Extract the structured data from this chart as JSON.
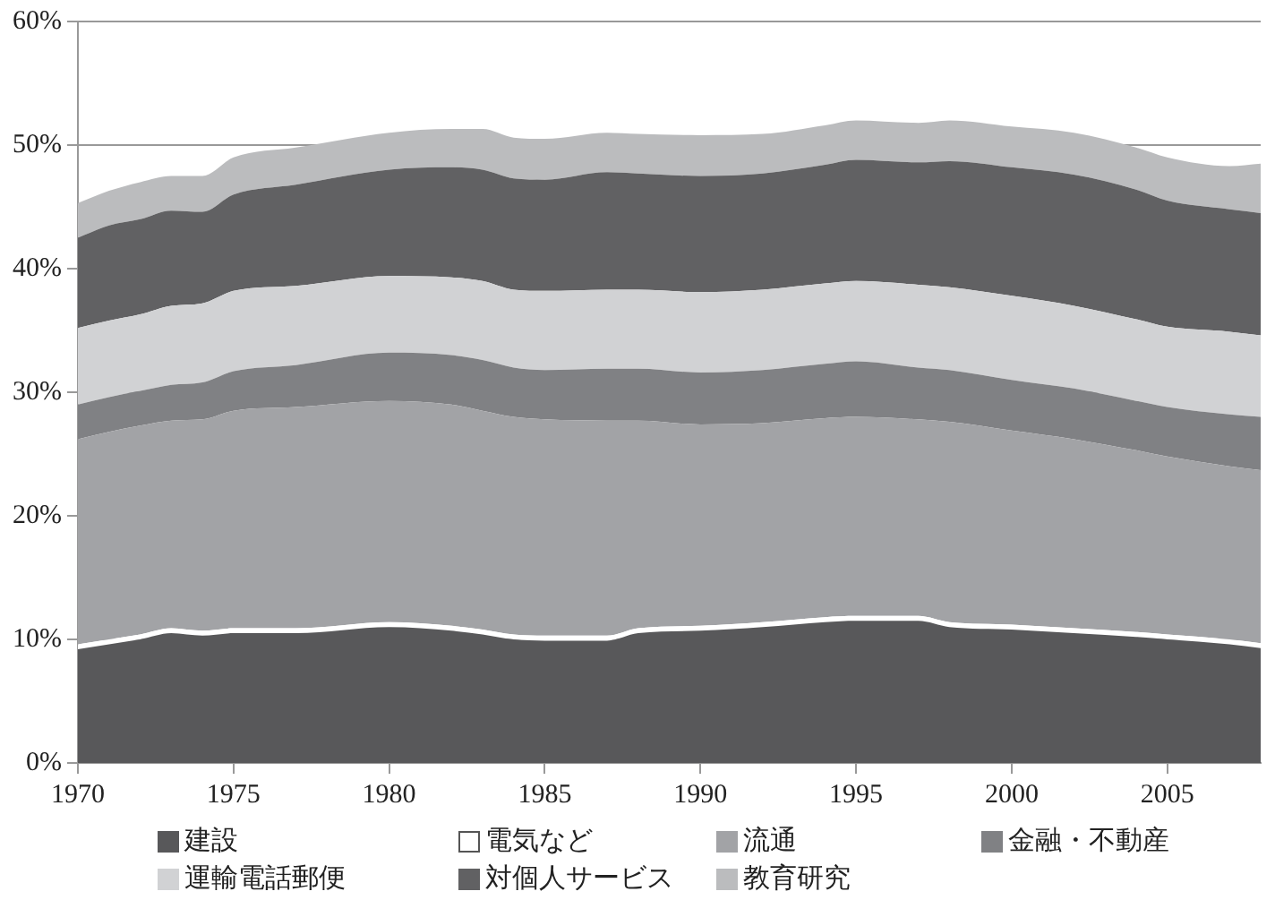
{
  "chart_data": {
    "type": "area",
    "stacked": true,
    "grid": "y",
    "legend": "bottom",
    "x": [
      1970,
      1971,
      1972,
      1973,
      1974,
      1975,
      1977,
      1980,
      1982,
      1983,
      1984,
      1985,
      1987,
      1988,
      1990,
      1992,
      1994,
      1995,
      1997,
      1998,
      2000,
      2002,
      2004,
      2005,
      2007,
      2008
    ],
    "xlim": [
      1970,
      2008
    ],
    "xticks": [
      1970,
      1975,
      1980,
      1985,
      1990,
      1995,
      2000,
      2005
    ],
    "ylim": [
      0,
      60
    ],
    "yticks": [
      {
        "value": 0,
        "label": "0%"
      },
      {
        "value": 10,
        "label": "10%"
      },
      {
        "value": 20,
        "label": "20%"
      },
      {
        "value": 30,
        "label": "30%"
      },
      {
        "value": 40,
        "label": "40%"
      },
      {
        "value": 50,
        "label": "50%"
      },
      {
        "value": 60,
        "label": "60%"
      }
    ],
    "series": [
      {
        "name": "建設",
        "color": "#58585a",
        "values": [
          9.2,
          9.6,
          10.0,
          10.5,
          10.3,
          10.5,
          10.5,
          11.0,
          10.7,
          10.4,
          10.0,
          9.9,
          9.9,
          10.5,
          10.7,
          11.0,
          11.4,
          11.5,
          11.5,
          11.0,
          10.8,
          10.5,
          10.2,
          10.0,
          9.6,
          9.3
        ]
      },
      {
        "name": "電気など",
        "color": "#ffffff",
        "values": [
          0.4,
          0.4,
          0.4,
          0.4,
          0.4,
          0.4,
          0.4,
          0.4,
          0.4,
          0.4,
          0.4,
          0.4,
          0.4,
          0.4,
          0.4,
          0.4,
          0.4,
          0.4,
          0.4,
          0.4,
          0.4,
          0.4,
          0.4,
          0.4,
          0.4,
          0.4
        ]
      },
      {
        "name": "流通",
        "color": "#a2a3a6",
        "values": [
          16.6,
          16.8,
          16.9,
          16.8,
          17.1,
          17.6,
          17.9,
          17.9,
          17.9,
          17.7,
          17.6,
          17.5,
          17.4,
          16.8,
          16.3,
          16.1,
          16.1,
          16.1,
          15.9,
          16.2,
          15.7,
          15.3,
          14.7,
          14.4,
          14.0,
          14.0
        ]
      },
      {
        "name": "金融・不動産",
        "color": "#808184",
        "values": [
          2.8,
          2.8,
          2.8,
          2.9,
          3.0,
          3.2,
          3.4,
          3.9,
          4.0,
          4.1,
          4.0,
          4.0,
          4.2,
          4.2,
          4.2,
          4.3,
          4.4,
          4.5,
          4.2,
          4.2,
          4.1,
          4.1,
          4.0,
          4.0,
          4.2,
          4.3
        ]
      },
      {
        "name": "運輸電話郵便",
        "color": "#d1d2d4",
        "values": [
          6.2,
          6.2,
          6.2,
          6.4,
          6.4,
          6.5,
          6.4,
          6.2,
          6.3,
          6.4,
          6.3,
          6.4,
          6.4,
          6.4,
          6.5,
          6.5,
          6.5,
          6.5,
          6.7,
          6.7,
          6.8,
          6.7,
          6.6,
          6.5,
          6.7,
          6.6
        ]
      },
      {
        "name": "対個人サービス",
        "color": "#616163",
        "values": [
          7.3,
          7.7,
          7.7,
          7.7,
          7.4,
          7.8,
          8.2,
          8.6,
          8.9,
          9.0,
          9.0,
          9.0,
          9.5,
          9.4,
          9.4,
          9.4,
          9.6,
          9.8,
          9.9,
          10.2,
          10.4,
          10.6,
          10.5,
          10.2,
          9.9,
          9.9
        ]
      },
      {
        "name": "教育研究",
        "color": "#bbbcbe",
        "values": [
          2.8,
          2.8,
          3.0,
          2.8,
          2.9,
          3.0,
          3.0,
          3.0,
          3.1,
          3.3,
          3.3,
          3.3,
          3.2,
          3.2,
          3.3,
          3.2,
          3.2,
          3.2,
          3.2,
          3.3,
          3.3,
          3.4,
          3.4,
          3.5,
          3.5,
          4.0
        ]
      }
    ]
  }
}
